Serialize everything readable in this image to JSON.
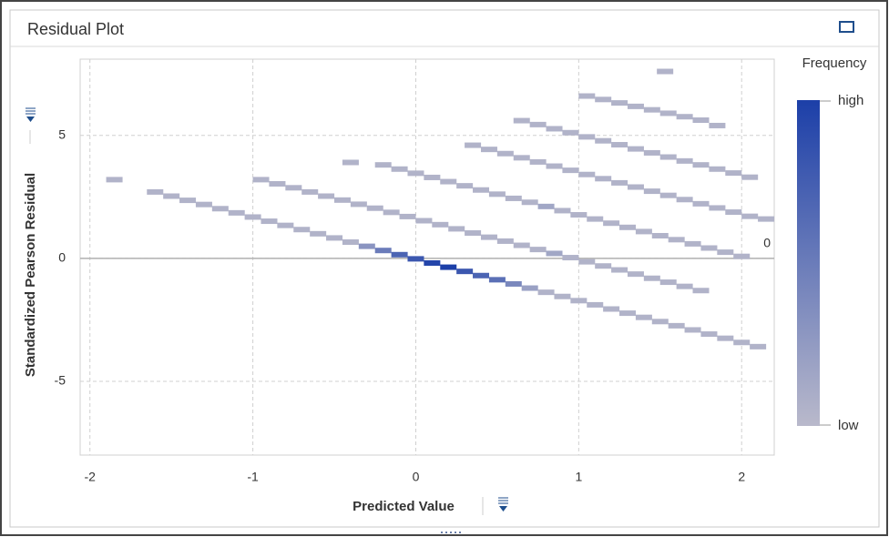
{
  "chart_data": {
    "type": "heatmap-scatter",
    "panel_title": "Residual Plot",
    "x_label": "Predicted Value",
    "y_label": "Standardized Pearson Residual",
    "legend_title": "Frequency",
    "legend_high": "high",
    "legend_low": "low",
    "color_low": "#b9b9cb",
    "color_high": "#1c3fa8",
    "reference_line": 0,
    "grid": true,
    "xlim": [
      -2.06,
      2.2
    ],
    "ylim": [
      -8,
      8.1
    ],
    "xticks": [
      -2,
      -1,
      0,
      1,
      2
    ],
    "yticks": [
      -5,
      0,
      5
    ],
    "x": [
      -1.6,
      -1.5,
      -1.4,
      -1.3,
      -1.2,
      -1.1,
      -1.0,
      -0.9,
      -0.8,
      -0.7,
      -0.6,
      -0.5,
      -0.4,
      -0.3,
      -0.2,
      -0.1,
      0,
      0.1,
      0.2,
      0.3,
      0.4,
      0.5,
      0.6,
      0.7,
      0.8,
      0.9,
      1.0,
      1.1,
      1.2,
      1.3,
      1.4,
      1.5,
      1.6,
      1.7,
      1.8,
      1.9,
      2.0,
      2.1,
      -0.95,
      -0.85,
      -0.75,
      -0.65,
      -0.55,
      -0.45,
      -0.35,
      -0.25,
      -0.15,
      -0.05,
      0.05,
      0.15,
      0.25,
      0.35,
      0.45,
      0.55,
      0.65,
      0.75,
      0.85,
      0.95,
      1.05,
      1.15,
      1.25,
      1.35,
      1.45,
      1.55,
      1.65,
      1.75,
      -0.2,
      -0.1,
      0,
      0.1,
      0.2,
      0.3,
      0.4,
      0.5,
      0.6,
      0.7,
      0.8,
      0.9,
      1.0,
      1.1,
      1.2,
      1.3,
      1.4,
      1.5,
      1.6,
      1.7,
      1.8,
      1.9,
      2.0,
      0.35,
      0.45,
      0.55,
      0.65,
      0.75,
      0.85,
      0.95,
      1.05,
      1.15,
      1.25,
      1.35,
      1.45,
      1.55,
      1.65,
      1.75,
      1.85,
      1.95,
      2.05,
      0.65,
      0.75,
      0.85,
      0.95,
      1.05,
      1.15,
      1.25,
      1.35,
      1.45,
      1.55,
      1.65,
      1.75,
      1.85,
      1.95,
      2.05,
      1.05,
      1.15,
      1.25,
      1.35,
      1.45,
      1.55,
      1.65,
      1.75,
      -1.85,
      -0.4,
      2.15,
      1.85,
      1.53
    ],
    "values": [
      2.7,
      2.53,
      2.36,
      2.19,
      2.02,
      1.85,
      1.68,
      1.51,
      1.34,
      1.17,
      1.0,
      0.83,
      0.66,
      0.49,
      0.32,
      0.15,
      -0.02,
      -0.19,
      -0.36,
      -0.53,
      -0.7,
      -0.87,
      -1.04,
      -1.21,
      -1.38,
      -1.55,
      -1.72,
      -1.89,
      -2.06,
      -2.23,
      -2.4,
      -2.57,
      -2.74,
      -2.91,
      -3.08,
      -3.25,
      -3.42,
      -3.59,
      3.2,
      3.03,
      2.87,
      2.7,
      2.53,
      2.37,
      2.2,
      2.04,
      1.87,
      1.7,
      1.53,
      1.37,
      1.2,
      1.03,
      0.86,
      0.7,
      0.53,
      0.36,
      0.2,
      0.03,
      -0.14,
      -0.31,
      -0.47,
      -0.64,
      -0.81,
      -0.97,
      -1.14,
      -1.31,
      3.8,
      3.63,
      3.46,
      3.29,
      3.12,
      2.95,
      2.78,
      2.61,
      2.44,
      2.28,
      2.11,
      1.94,
      1.77,
      1.6,
      1.43,
      1.26,
      1.09,
      0.92,
      0.76,
      0.59,
      0.42,
      0.25,
      0.08,
      4.6,
      4.43,
      4.26,
      4.09,
      3.92,
      3.75,
      3.58,
      3.41,
      3.24,
      3.07,
      2.9,
      2.73,
      2.56,
      2.39,
      2.22,
      2.05,
      1.88,
      1.71,
      5.6,
      5.44,
      5.27,
      5.11,
      4.94,
      4.78,
      4.62,
      4.45,
      4.29,
      4.12,
      3.96,
      3.8,
      3.63,
      3.47,
      3.3,
      6.6,
      6.46,
      6.32,
      6.18,
      6.04,
      5.9,
      5.76,
      5.62,
      3.2,
      3.9,
      1.6,
      5.4,
      7.6
    ],
    "frequency": [
      0.05,
      0.05,
      0.05,
      0.05,
      0.05,
      0.05,
      0.05,
      0.05,
      0.05,
      0.05,
      0.05,
      0.05,
      0.05,
      0.3,
      0.5,
      0.7,
      0.8,
      0.95,
      1,
      0.8,
      0.7,
      0.6,
      0.4,
      0.2,
      0.05,
      0.05,
      0.05,
      0.05,
      0.05,
      0.05,
      0.05,
      0.05,
      0.05,
      0.05,
      0.05,
      0.05,
      0.05,
      0.05,
      0.05,
      0.05,
      0.05,
      0.05,
      0.05,
      0.05,
      0.05,
      0.05,
      0.05,
      0.05,
      0.05,
      0.05,
      0.05,
      0.05,
      0.05,
      0.05,
      0.05,
      0.05,
      0.15,
      0.05,
      0.05,
      0.05,
      0.05,
      0.05,
      0.05,
      0.05,
      0.05,
      0.05,
      0.05,
      0.05,
      0.05,
      0.05,
      0.05,
      0.05,
      0.05,
      0.05,
      0.05,
      0.05,
      0.15,
      0.05,
      0.05,
      0.05,
      0.05,
      0.05,
      0.05,
      0.05,
      0.05,
      0.05,
      0.05,
      0.05,
      0.05,
      0.05,
      0.05,
      0.05,
      0.05,
      0.05,
      0.05,
      0.05,
      0.05,
      0.05,
      0.05,
      0.05,
      0.05,
      0.05,
      0.05,
      0.05,
      0.05,
      0.05,
      0.05,
      0.05,
      0.05,
      0.05,
      0.05,
      0.05,
      0.05,
      0.05,
      0.05,
      0.05,
      0.05,
      0.05,
      0.05,
      0.05,
      0.05,
      0.05,
      0.05,
      0.05,
      0.05,
      0.05,
      0.05,
      0.05,
      0.05,
      0.05,
      0.05,
      0.05,
      0.05,
      0.05,
      0.05
    ]
  }
}
